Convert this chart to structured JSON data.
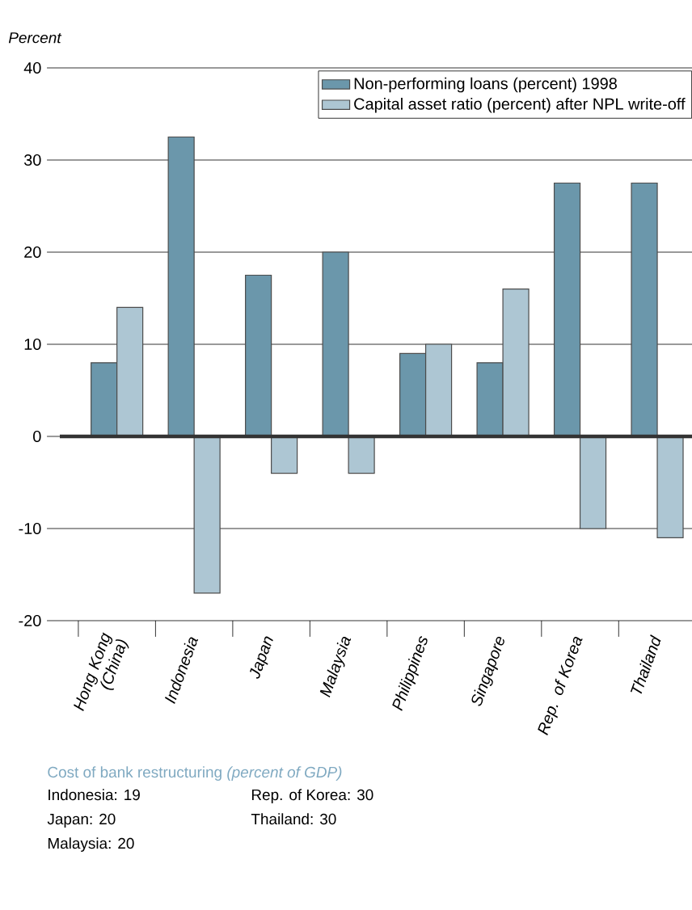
{
  "chart_data": {
    "type": "bar",
    "ylabel": "Percent",
    "categories": [
      "Hong Kong (China)",
      "Indonesia",
      "Japan",
      "Malaysia",
      "Philippines",
      "Singapore",
      "Rep. of Korea",
      "Thailand"
    ],
    "series": [
      {
        "name": "Non-performing loans (percent) 1998",
        "color": "#6b97ab",
        "values": [
          8,
          32.5,
          17.5,
          20,
          9,
          8,
          27.5,
          27.5
        ]
      },
      {
        "name": "Capital asset ratio (percent) after NPL write-off",
        "color": "#adc6d3",
        "values": [
          14,
          -17,
          -4,
          -4,
          10,
          16,
          -10,
          -11
        ]
      }
    ],
    "ylim": [
      -20,
      40
    ],
    "yticks": [
      -20,
      -10,
      0,
      10,
      20,
      30,
      40
    ],
    "grid": "y",
    "legend": "top right",
    "annotations": [
      "Cost of bank restructuring *(percent of GDP)*",
      "Indonesia: 19",
      "Japan: 20",
      "Malaysia: 20",
      "Rep. of Korea: 30",
      "Thailand: 30"
    ]
  }
}
